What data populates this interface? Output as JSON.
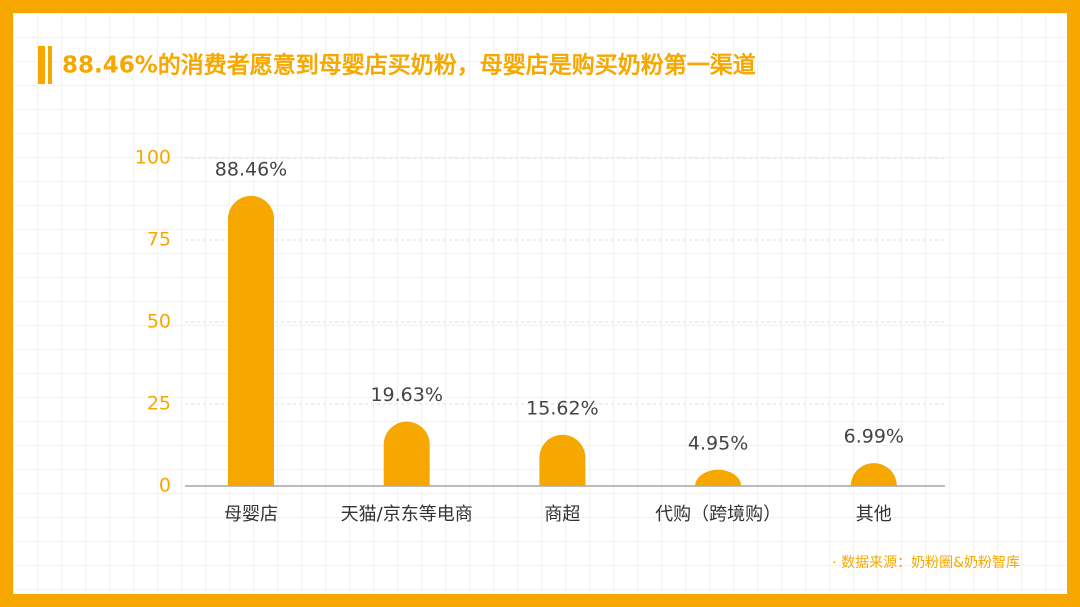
{
  "chart_data": {
    "type": "bar",
    "title": "88.46%的消费者愿意到母婴店买奶粉，母婴店是购买奶粉第一渠道",
    "categories": [
      "母婴店",
      "天猫/京东等电商",
      "商超",
      "代购（跨境购）",
      "其他"
    ],
    "values": [
      88.46,
      19.63,
      15.62,
      4.95,
      6.99
    ],
    "value_labels": [
      "88.46%",
      "19.63%",
      "15.62%",
      "4.95%",
      "6.99%"
    ],
    "color": "#f6a800",
    "ylim": [
      0,
      100
    ],
    "yticks": [
      0,
      25,
      50,
      75,
      100
    ],
    "grid": true,
    "source": "· 数据来源：奶粉圈&奶粉智库"
  }
}
